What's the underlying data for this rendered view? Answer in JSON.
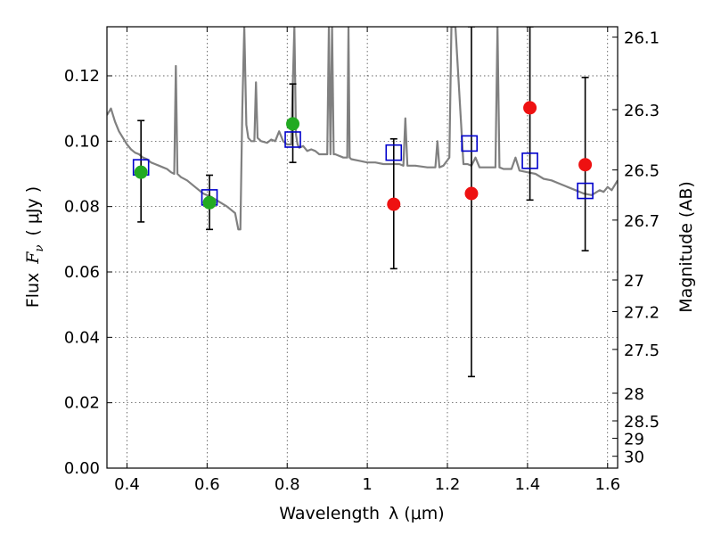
{
  "chart_data": {
    "type": "scatter",
    "x_label_text": "Wavelength",
    "x_label_math": "λ (μm)",
    "y_label_text": "Flux",
    "y_label_math": "F",
    "y_label_sub": "ν",
    "y_label_unit": "( μJy )",
    "y2_label": "Magnitude (AB)",
    "xlim": [
      0.35,
      1.625
    ],
    "ylim": [
      0.0,
      0.135
    ],
    "x_ticks": [
      0.4,
      0.6,
      0.8,
      1.0,
      1.2,
      1.4,
      1.6
    ],
    "x_tick_labels": [
      "0.4",
      "0.6",
      "0.8",
      "1",
      "1.2",
      "1.4",
      "1.6"
    ],
    "y_ticks": [
      0.0,
      0.02,
      0.04,
      0.06,
      0.08,
      0.1,
      0.12
    ],
    "y_tick_labels": [
      "0.00",
      "0.02",
      "0.04",
      "0.06",
      "0.08",
      "0.10",
      "0.12"
    ],
    "mag_ticks": [
      26.1,
      26.3,
      26.5,
      26.7,
      27,
      27.2,
      27.5,
      28,
      28.5,
      29,
      30
    ],
    "mag_tick_labels": [
      "26.1",
      "26.3",
      "26.5",
      "26.7",
      "27",
      "27.2",
      "27.5",
      "28",
      "28.5",
      "29",
      "30"
    ],
    "colors": {
      "sed": "#808080",
      "observed_green": "#22aa22",
      "observed_red": "#ee1111",
      "model": "#0000cc",
      "errorbar": "#000000"
    },
    "observed_green": {
      "x": [
        0.435,
        0.606,
        0.814
      ],
      "y": [
        0.0905,
        0.0812,
        0.1053
      ],
      "yerr_low": [
        0.0753,
        0.073,
        0.0935
      ],
      "yerr_high": [
        0.1063,
        0.0896,
        0.1175
      ]
    },
    "observed_red": {
      "x": [
        1.066,
        1.26,
        1.406,
        1.544
      ],
      "y": [
        0.0807,
        0.084,
        0.1102,
        0.0928
      ],
      "yerr_low": [
        0.061,
        0.028,
        0.082,
        0.0665
      ],
      "yerr_high": [
        0.1007,
        0.135,
        0.135,
        0.1195
      ]
    },
    "model_points": {
      "x": [
        0.435,
        0.606,
        0.814,
        1.066,
        1.255,
        1.406,
        1.544
      ],
      "y": [
        0.092,
        0.0828,
        0.1005,
        0.0965,
        0.0993,
        0.094,
        0.0848
      ]
    },
    "sed": {
      "x": [
        0.35,
        0.36,
        0.37,
        0.38,
        0.39,
        0.4,
        0.41,
        0.42,
        0.43,
        0.44,
        0.45,
        0.46,
        0.47,
        0.48,
        0.49,
        0.5,
        0.51,
        0.518,
        0.522,
        0.526,
        0.535,
        0.55,
        0.57,
        0.59,
        0.61,
        0.63,
        0.65,
        0.67,
        0.678,
        0.683,
        0.688,
        0.693,
        0.698,
        0.703,
        0.71,
        0.718,
        0.722,
        0.726,
        0.735,
        0.75,
        0.76,
        0.77,
        0.78,
        0.79,
        0.8,
        0.81,
        0.818,
        0.822,
        0.826,
        0.83,
        0.84,
        0.85,
        0.86,
        0.87,
        0.88,
        0.89,
        0.9,
        0.904,
        0.908,
        0.912,
        0.916,
        0.92,
        0.94,
        0.95,
        0.953,
        0.956,
        0.96,
        0.98,
        1.0,
        1.02,
        1.04,
        1.06,
        1.08,
        1.09,
        1.095,
        1.1,
        1.12,
        1.15,
        1.17,
        1.175,
        1.18,
        1.19,
        1.205,
        1.21,
        1.215,
        1.22,
        1.24,
        1.25,
        1.26,
        1.27,
        1.28,
        1.3,
        1.32,
        1.325,
        1.33,
        1.34,
        1.36,
        1.37,
        1.38,
        1.4,
        1.42,
        1.44,
        1.46,
        1.48,
        1.5,
        1.52,
        1.54,
        1.56,
        1.58,
        1.59,
        1.6,
        1.61,
        1.625
      ],
      "y": [
        0.108,
        0.11,
        0.106,
        0.103,
        0.101,
        0.099,
        0.0975,
        0.0965,
        0.096,
        0.095,
        0.0945,
        0.0935,
        0.093,
        0.0925,
        0.092,
        0.0915,
        0.0905,
        0.09,
        0.123,
        0.09,
        0.089,
        0.088,
        0.086,
        0.084,
        0.083,
        0.0815,
        0.08,
        0.078,
        0.073,
        0.073,
        0.11,
        0.135,
        0.105,
        0.101,
        0.1,
        0.1,
        0.118,
        0.101,
        0.1,
        0.0995,
        0.1005,
        0.1,
        0.103,
        0.1,
        0.099,
        0.099,
        0.135,
        0.102,
        0.099,
        0.098,
        0.0985,
        0.097,
        0.0975,
        0.097,
        0.096,
        0.096,
        0.096,
        0.135,
        0.096,
        0.135,
        0.096,
        0.096,
        0.095,
        0.095,
        0.135,
        0.095,
        0.0945,
        0.094,
        0.0935,
        0.0935,
        0.093,
        0.093,
        0.093,
        0.0925,
        0.107,
        0.0925,
        0.0925,
        0.092,
        0.092,
        0.1,
        0.092,
        0.0925,
        0.095,
        0.135,
        0.135,
        0.135,
        0.093,
        0.093,
        0.0925,
        0.095,
        0.092,
        0.092,
        0.092,
        0.135,
        0.092,
        0.0915,
        0.0915,
        0.095,
        0.091,
        0.0905,
        0.09,
        0.0885,
        0.088,
        0.087,
        0.086,
        0.085,
        0.084,
        0.0835,
        0.085,
        0.0845,
        0.086,
        0.085,
        0.088
      ]
    }
  }
}
